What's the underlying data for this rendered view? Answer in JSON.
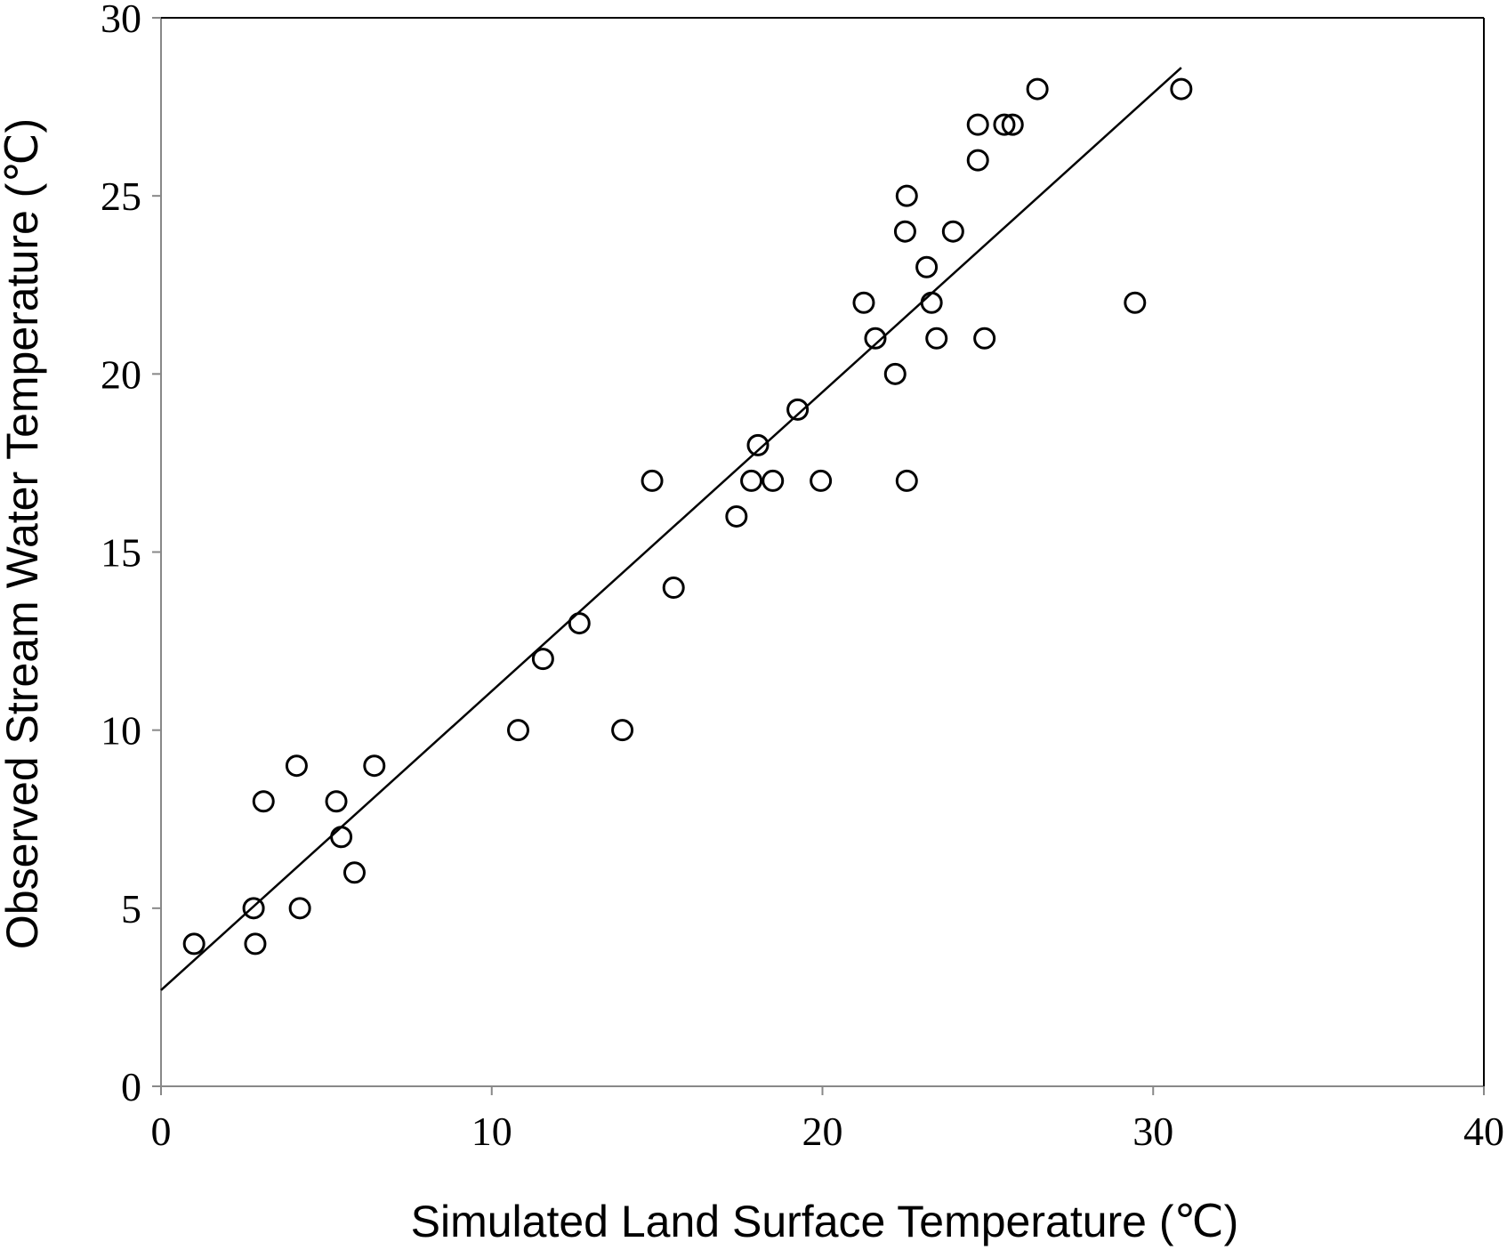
{
  "chart_data": {
    "type": "scatter",
    "xlabel": "Simulated Land Surface Temperature (℃)",
    "ylabel": "Observed Stream Water Temperature (℃)",
    "xlim": [
      0,
      40
    ],
    "ylim": [
      0,
      30
    ],
    "x_ticks": [
      "0",
      "10",
      "20",
      "30",
      "40"
    ],
    "y_ticks": [
      "0",
      "5",
      "10",
      "15",
      "20",
      "25",
      "30"
    ],
    "grid": false,
    "legend": "none",
    "points": [
      {
        "x": 1.0,
        "y": 4
      },
      {
        "x": 2.8,
        "y": 5
      },
      {
        "x": 2.85,
        "y": 4
      },
      {
        "x": 3.1,
        "y": 8
      },
      {
        "x": 4.1,
        "y": 9
      },
      {
        "x": 4.2,
        "y": 5
      },
      {
        "x": 5.3,
        "y": 8
      },
      {
        "x": 5.45,
        "y": 7
      },
      {
        "x": 5.85,
        "y": 6
      },
      {
        "x": 6.45,
        "y": 9
      },
      {
        "x": 10.8,
        "y": 10
      },
      {
        "x": 11.55,
        "y": 12
      },
      {
        "x": 12.65,
        "y": 13
      },
      {
        "x": 13.95,
        "y": 10
      },
      {
        "x": 14.85,
        "y": 17
      },
      {
        "x": 15.5,
        "y": 14
      },
      {
        "x": 17.4,
        "y": 16
      },
      {
        "x": 17.85,
        "y": 17
      },
      {
        "x": 18.05,
        "y": 18
      },
      {
        "x": 18.5,
        "y": 17
      },
      {
        "x": 19.25,
        "y": 19
      },
      {
        "x": 19.95,
        "y": 17
      },
      {
        "x": 21.25,
        "y": 22
      },
      {
        "x": 21.6,
        "y": 21
      },
      {
        "x": 22.2,
        "y": 20
      },
      {
        "x": 22.5,
        "y": 24
      },
      {
        "x": 22.55,
        "y": 17
      },
      {
        "x": 22.55,
        "y": 25
      },
      {
        "x": 23.15,
        "y": 23
      },
      {
        "x": 23.3,
        "y": 22
      },
      {
        "x": 23.45,
        "y": 21
      },
      {
        "x": 23.95,
        "y": 24
      },
      {
        "x": 24.7,
        "y": 27
      },
      {
        "x": 24.7,
        "y": 26
      },
      {
        "x": 24.9,
        "y": 21
      },
      {
        "x": 25.5,
        "y": 27
      },
      {
        "x": 25.75,
        "y": 27
      },
      {
        "x": 26.5,
        "y": 28
      },
      {
        "x": 29.45,
        "y": 22
      },
      {
        "x": 30.85,
        "y": 28
      }
    ],
    "trendline": {
      "x": [
        0,
        30.85
      ],
      "y": [
        2.7,
        28.6
      ]
    }
  }
}
